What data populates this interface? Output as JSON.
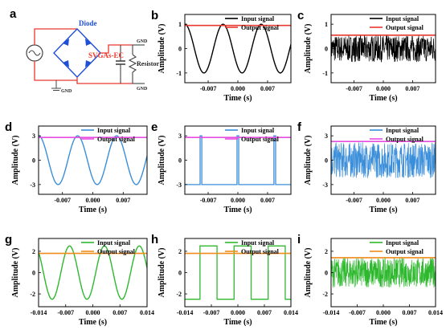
{
  "figure": {
    "panel_labels": [
      "a",
      "b",
      "c",
      "d",
      "e",
      "f",
      "g",
      "h",
      "i"
    ],
    "circuit": {
      "diode_label": "Diode",
      "svgas_label": "SVGAs-EC",
      "resistor_label": "Resistor",
      "gnd_top": "GND",
      "gnd_right": "GND",
      "gnd_bottom": "GND"
    },
    "colors": {
      "output_row1": "#e8392e",
      "input_row2": "#3b8ed9",
      "output_row2": "#e64ce0",
      "input_row3": "#2eb82e",
      "output_row3": "#f08c1a",
      "input_row1": "#000000"
    }
  },
  "chart_data": [
    {
      "panel": "b",
      "type": "line",
      "xlabel": "Time (s)",
      "ylabel": "Amplitude (V)",
      "xlim": [
        -0.0125,
        0.0125
      ],
      "ylim": [
        -1.4,
        1.4
      ],
      "xticks": [
        -0.007,
        0.0,
        0.007
      ],
      "xtick_labels": [
        "-0.007",
        "0.000",
        "0.007"
      ],
      "yticks": [
        -1,
        0,
        1
      ],
      "ytick_labels": [
        "-1",
        "0",
        "1"
      ],
      "legend": [
        "Input signal",
        "Output signal"
      ],
      "series": [
        {
          "name": "Input signal",
          "kind": "sine",
          "amplitude": 1.0,
          "period": 0.009,
          "phase_peak": -0.0035,
          "color": "#000000"
        },
        {
          "name": "Output signal",
          "kind": "constant",
          "value": 0.95,
          "color": "#e8392e"
        }
      ]
    },
    {
      "panel": "c",
      "type": "line",
      "xlabel": "Time (s)",
      "ylabel": "Amplitude (V)",
      "xlim": [
        -0.0125,
        0.0125
      ],
      "ylim": [
        -1.4,
        1.4
      ],
      "xticks": [
        -0.007,
        0.0,
        0.007
      ],
      "xtick_labels": [
        "-0.007",
        "0.000",
        "0.007"
      ],
      "yticks": [
        -1,
        0,
        1
      ],
      "ytick_labels": [
        "-1",
        "0",
        "1"
      ],
      "legend": [
        "Input signal",
        "Output signal"
      ],
      "series": [
        {
          "name": "Input signal",
          "kind": "noise",
          "amplitude": 0.55,
          "color": "#000000"
        },
        {
          "name": "Output signal",
          "kind": "constant",
          "value": 0.55,
          "color": "#e8392e"
        }
      ]
    },
    {
      "panel": "d",
      "type": "line",
      "xlabel": "Time (s)",
      "ylabel": "Amplitude (V)",
      "xlim": [
        -0.0125,
        0.0125
      ],
      "ylim": [
        -4.2,
        4.2
      ],
      "xticks": [
        -0.007,
        0.0,
        0.007
      ],
      "xtick_labels": [
        "-0.007",
        "0.000",
        "0.007"
      ],
      "yticks": [
        -3,
        0,
        3
      ],
      "ytick_labels": [
        "-3",
        "0",
        "3"
      ],
      "legend": [
        "Input signal",
        "Output signal"
      ],
      "series": [
        {
          "name": "Input signal",
          "kind": "sine",
          "amplitude": 3.0,
          "period": 0.009,
          "phase_peak": -0.0035,
          "color": "#3b8ed9"
        },
        {
          "name": "Output signal",
          "kind": "constant",
          "value": 2.8,
          "color": "#e64ce0"
        }
      ]
    },
    {
      "panel": "e",
      "type": "line",
      "xlabel": "Time (s)",
      "ylabel": "Amplitude (V)",
      "xlim": [
        -0.0125,
        0.0125
      ],
      "ylim": [
        -4.2,
        4.2
      ],
      "xticks": [
        -0.007,
        0.0,
        0.007
      ],
      "xtick_labels": [
        "-0.007",
        "0.000",
        "0.007"
      ],
      "yticks": [
        -3,
        0,
        3
      ],
      "ytick_labels": [
        "-3",
        "0",
        "3"
      ],
      "legend": [
        "Input signal",
        "Output signal"
      ],
      "series": [
        {
          "name": "Input signal",
          "kind": "spikes",
          "low": -3.0,
          "high": 3.0,
          "positions": [
            -0.0087,
            0.0,
            0.0087
          ],
          "color": "#3b8ed9"
        },
        {
          "name": "Output signal",
          "kind": "constant",
          "value": 2.8,
          "color": "#e64ce0"
        }
      ]
    },
    {
      "panel": "f",
      "type": "line",
      "xlabel": "Time (s)",
      "ylabel": "Amplitude (V)",
      "xlim": [
        -0.0125,
        0.0125
      ],
      "ylim": [
        -4.2,
        4.2
      ],
      "xticks": [
        -0.007,
        0.0,
        0.007
      ],
      "xtick_labels": [
        "-0.007",
        "0.000",
        "0.007"
      ],
      "yticks": [
        -3,
        0,
        3
      ],
      "ytick_labels": [
        "-3",
        "0",
        "3"
      ],
      "legend": [
        "Input signal",
        "Output signal"
      ],
      "series": [
        {
          "name": "Input signal",
          "kind": "noise",
          "amplitude": 2.2,
          "color": "#3b8ed9"
        },
        {
          "name": "Output signal",
          "kind": "constant",
          "value": 2.3,
          "color": "#e64ce0"
        }
      ]
    },
    {
      "panel": "g",
      "type": "line",
      "xlabel": "Time (s)",
      "ylabel": "Amplitude (V)",
      "xlim": [
        -0.014,
        0.014
      ],
      "ylim": [
        -3.2,
        3.2
      ],
      "xticks": [
        -0.014,
        -0.007,
        0.0,
        0.007,
        0.014
      ],
      "xtick_labels": [
        "-0.014",
        "-0.007",
        "0.000",
        "0.007",
        "0.014"
      ],
      "yticks": [
        -2,
        0,
        2
      ],
      "ytick_labels": [
        "-2",
        "0",
        "2"
      ],
      "legend": [
        "Input signal",
        "Output signal"
      ],
      "series": [
        {
          "name": "Input signal",
          "kind": "sine",
          "amplitude": 2.5,
          "period": 0.009,
          "phase_peak": -0.006,
          "color": "#2eb82e"
        },
        {
          "name": "Output signal",
          "kind": "constant",
          "value": 1.8,
          "color": "#f08c1a"
        }
      ]
    },
    {
      "panel": "h",
      "type": "line",
      "xlabel": "Time (s)",
      "ylabel": "Amplitude (V)",
      "xlim": [
        -0.014,
        0.014
      ],
      "ylim": [
        -3.2,
        3.2
      ],
      "xticks": [
        -0.014,
        -0.007,
        0.0,
        0.007,
        0.014
      ],
      "xtick_labels": [
        "-0.014",
        "-0.007",
        "0.000",
        "0.007",
        "0.014"
      ],
      "yticks": [
        -2,
        0,
        2
      ],
      "ytick_labels": [
        "-2",
        "0",
        "2"
      ],
      "legend": [
        "Input signal",
        "Output signal"
      ],
      "series": [
        {
          "name": "Input signal",
          "kind": "square",
          "low": -2.5,
          "high": 2.5,
          "edges": [
            -0.01,
            -0.0055,
            -0.001,
            0.0035,
            0.008,
            0.0125
          ],
          "start_level": "low",
          "color": "#2eb82e"
        },
        {
          "name": "Output signal",
          "kind": "constant",
          "value": 1.8,
          "color": "#f08c1a"
        }
      ]
    },
    {
      "panel": "i",
      "type": "line",
      "xlabel": "Time (s)",
      "ylabel": "Amplitude (V)",
      "xlim": [
        -0.014,
        0.014
      ],
      "ylim": [
        -3.2,
        3.2
      ],
      "xticks": [
        -0.014,
        -0.007,
        0.0,
        0.007,
        0.014
      ],
      "xtick_labels": [
        "-0.014",
        "-0.007",
        "0.000",
        "0.007",
        "0.014"
      ],
      "yticks": [
        -2,
        0,
        2
      ],
      "ytick_labels": [
        "-2",
        "0",
        "2"
      ],
      "legend": [
        "Input signal",
        "Output signal"
      ],
      "series": [
        {
          "name": "Input signal",
          "kind": "noise",
          "amplitude": 1.4,
          "color": "#2eb82e"
        },
        {
          "name": "Output signal",
          "kind": "constant",
          "value": 1.4,
          "color": "#f08c1a"
        }
      ]
    }
  ]
}
